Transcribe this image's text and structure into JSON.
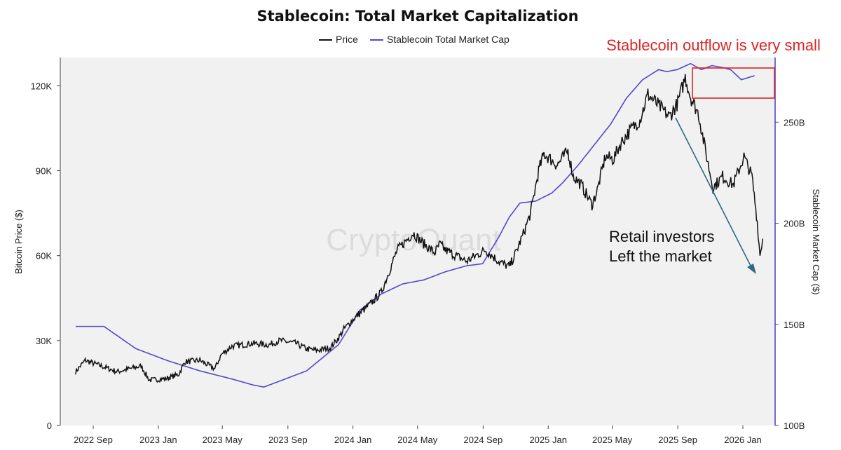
{
  "chart_data": {
    "type": "line",
    "title": "Stablecoin: Total Market Capitalization",
    "legend": [
      "Price",
      "Stablecoin Total Market Cap"
    ],
    "legend_position": "top-center",
    "ylabel_left": "Bitcoin Price ($)",
    "ylabel_right": "Stablecoin Market Cap ($)",
    "ylim_left": [
      0,
      130000
    ],
    "ylim_right": [
      100,
      282
    ],
    "yticks_left": [
      {
        "v": 0,
        "label": "0"
      },
      {
        "v": 30000,
        "label": "30K"
      },
      {
        "v": 60000,
        "label": "60K"
      },
      {
        "v": 90000,
        "label": "90K"
      },
      {
        "v": 120000,
        "label": "120K"
      }
    ],
    "yticks_right": [
      {
        "v": 100,
        "label": "100B"
      },
      {
        "v": 150,
        "label": "150B"
      },
      {
        "v": 200,
        "label": "200B"
      },
      {
        "v": 250,
        "label": "250B"
      }
    ],
    "xlim": [
      0,
      1255
    ],
    "xticks": [
      {
        "t": 0,
        "label": "2022 Sep"
      },
      {
        "t": 122,
        "label": "2023 Jan"
      },
      {
        "t": 242,
        "label": "2023 May"
      },
      {
        "t": 365,
        "label": "2023 Sep"
      },
      {
        "t": 487,
        "label": "2024 Jan"
      },
      {
        "t": 608,
        "label": "2024 May"
      },
      {
        "t": 731,
        "label": "2024 Sep"
      },
      {
        "t": 853,
        "label": "2025 Jan"
      },
      {
        "t": 973,
        "label": "2025 May"
      },
      {
        "t": 1096,
        "label": "2025 Sep"
      },
      {
        "t": 1218,
        "label": "2026 Jan"
      }
    ],
    "series": [
      {
        "name": "Price",
        "color": "#111111",
        "axis": "left",
        "points": [
          [
            -33,
            19000
          ],
          [
            -15,
            23000
          ],
          [
            15,
            21000
          ],
          [
            45,
            19000
          ],
          [
            90,
            21000
          ],
          [
            105,
            16000
          ],
          [
            135,
            16500
          ],
          [
            160,
            18000
          ],
          [
            172,
            22500
          ],
          [
            200,
            23000
          ],
          [
            228,
            20000
          ],
          [
            240,
            25000
          ],
          [
            260,
            28000
          ],
          [
            300,
            29000
          ],
          [
            330,
            28500
          ],
          [
            350,
            30000
          ],
          [
            380,
            29000
          ],
          [
            400,
            27000
          ],
          [
            420,
            26500
          ],
          [
            445,
            27500
          ],
          [
            460,
            31000
          ],
          [
            470,
            34000
          ],
          [
            490,
            38000
          ],
          [
            520,
            43000
          ],
          [
            540,
            47000
          ],
          [
            570,
            62000
          ],
          [
            600,
            68000
          ],
          [
            615,
            65000
          ],
          [
            640,
            61000
          ],
          [
            650,
            64000
          ],
          [
            660,
            62000
          ],
          [
            700,
            58000
          ],
          [
            735,
            62000
          ],
          [
            760,
            58000
          ],
          [
            780,
            56000
          ],
          [
            790,
            60000
          ],
          [
            805,
            67000
          ],
          [
            820,
            75000
          ],
          [
            835,
            90000
          ],
          [
            845,
            96000
          ],
          [
            870,
            92000
          ],
          [
            890,
            97000
          ],
          [
            900,
            88000
          ],
          [
            915,
            85000
          ],
          [
            935,
            78000
          ],
          [
            945,
            83000
          ],
          [
            960,
            95000
          ],
          [
            975,
            94000
          ],
          [
            990,
            100000
          ],
          [
            1010,
            105000
          ],
          [
            1025,
            108000
          ],
          [
            1040,
            117000
          ],
          [
            1060,
            113000
          ],
          [
            1080,
            109000
          ],
          [
            1096,
            114000
          ],
          [
            1110,
            123000
          ],
          [
            1120,
            116000
          ],
          [
            1135,
            110000
          ],
          [
            1150,
            95000
          ],
          [
            1162,
            84000
          ],
          [
            1180,
            88000
          ],
          [
            1200,
            85000
          ],
          [
            1220,
            95000
          ],
          [
            1235,
            88000
          ],
          [
            1245,
            72000
          ],
          [
            1250,
            60000
          ],
          [
            1255,
            66000
          ]
        ]
      },
      {
        "name": "Stablecoin Total Market Cap",
        "color": "#5148cc",
        "axis": "right",
        "points": [
          [
            -33,
            149
          ],
          [
            20,
            149
          ],
          [
            80,
            138
          ],
          [
            140,
            132
          ],
          [
            200,
            127
          ],
          [
            260,
            123
          ],
          [
            300,
            120
          ],
          [
            320,
            119
          ],
          [
            340,
            121
          ],
          [
            400,
            127
          ],
          [
            460,
            140
          ],
          [
            500,
            157
          ],
          [
            540,
            165
          ],
          [
            580,
            170
          ],
          [
            620,
            172
          ],
          [
            660,
            176
          ],
          [
            700,
            179
          ],
          [
            730,
            180
          ],
          [
            760,
            193
          ],
          [
            780,
            203
          ],
          [
            800,
            210
          ],
          [
            830,
            211
          ],
          [
            860,
            215
          ],
          [
            880,
            220
          ],
          [
            910,
            229
          ],
          [
            940,
            239
          ],
          [
            970,
            249
          ],
          [
            1000,
            262
          ],
          [
            1030,
            271
          ],
          [
            1060,
            276
          ],
          [
            1075,
            275
          ],
          [
            1095,
            276
          ],
          [
            1120,
            279
          ],
          [
            1140,
            276
          ],
          [
            1160,
            278
          ],
          [
            1180,
            277
          ],
          [
            1195,
            276
          ],
          [
            1215,
            271
          ],
          [
            1240,
            273
          ]
        ]
      }
    ],
    "annotations": [
      {
        "text": "Stablecoin outflow is very small",
        "color": "#e02424"
      },
      {
        "text": "Retail investors",
        "color": "#111111"
      },
      {
        "text": "Left the market",
        "color": "#111111"
      }
    ],
    "watermark": "CryptoQuant",
    "arrow_color": "#2e6a84"
  }
}
